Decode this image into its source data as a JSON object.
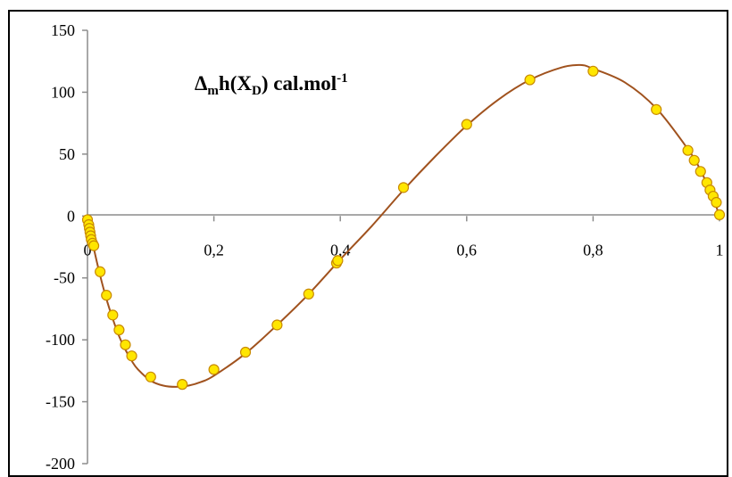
{
  "chart_data": {
    "type": "scatter",
    "title": {
      "delta": "Δ",
      "sub_m": "m",
      "h": "h(X",
      "sub_d": "D",
      "rest": ") cal.mol",
      "sup": "-1"
    },
    "xlim": [
      0,
      1
    ],
    "ylim": [
      -200,
      150
    ],
    "x_ticks": [
      "0",
      "0,2",
      "0,4",
      "0,6",
      "0,8",
      "1"
    ],
    "y_ticks": [
      "150",
      "100",
      "50",
      "0",
      "-50",
      "-100",
      "-150",
      "-200"
    ],
    "grid": false,
    "points_color": "#ffe600",
    "points_edge": "#c98a00",
    "fit_color": "#a0521e",
    "series": [
      {
        "values": [
          [
            0.0,
            -3
          ],
          [
            0.002,
            -7
          ],
          [
            0.003,
            -10
          ],
          [
            0.004,
            -13
          ],
          [
            0.005,
            -16
          ],
          [
            0.006,
            -19
          ],
          [
            0.008,
            -22
          ],
          [
            0.01,
            -24
          ],
          [
            0.02,
            -45
          ],
          [
            0.03,
            -64
          ],
          [
            0.04,
            -80
          ],
          [
            0.05,
            -92
          ],
          [
            0.06,
            -104
          ],
          [
            0.07,
            -113
          ],
          [
            0.1,
            -130
          ],
          [
            0.15,
            -136
          ],
          [
            0.2,
            -124
          ],
          [
            0.25,
            -110
          ],
          [
            0.3,
            -88
          ],
          [
            0.35,
            -63
          ],
          [
            0.394,
            -38
          ],
          [
            0.396,
            -36
          ],
          [
            0.5,
            23
          ],
          [
            0.6,
            74
          ],
          [
            0.7,
            110
          ],
          [
            0.8,
            117
          ],
          [
            0.9,
            86
          ],
          [
            0.95,
            53
          ],
          [
            0.96,
            45
          ],
          [
            0.97,
            36
          ],
          [
            0.98,
            27
          ],
          [
            0.985,
            21
          ],
          [
            0.99,
            16
          ],
          [
            0.995,
            11
          ],
          [
            1.0,
            1
          ]
        ]
      }
    ],
    "fit_curve": [
      [
        0.0,
        0
      ],
      [
        0.01,
        -26
      ],
      [
        0.02,
        -48
      ],
      [
        0.03,
        -67
      ],
      [
        0.04,
        -83
      ],
      [
        0.05,
        -97
      ],
      [
        0.06,
        -108
      ],
      [
        0.07,
        -117
      ],
      [
        0.08,
        -124
      ],
      [
        0.1,
        -133
      ],
      [
        0.12,
        -137
      ],
      [
        0.14,
        -138
      ],
      [
        0.16,
        -137
      ],
      [
        0.18,
        -134
      ],
      [
        0.2,
        -129
      ],
      [
        0.25,
        -111
      ],
      [
        0.3,
        -88
      ],
      [
        0.35,
        -63
      ],
      [
        0.4,
        -35
      ],
      [
        0.45,
        -8
      ],
      [
        0.5,
        21
      ],
      [
        0.55,
        48
      ],
      [
        0.6,
        73
      ],
      [
        0.65,
        94
      ],
      [
        0.7,
        110
      ],
      [
        0.75,
        120
      ],
      [
        0.78,
        122
      ],
      [
        0.8,
        119
      ],
      [
        0.85,
        108
      ],
      [
        0.9,
        87
      ],
      [
        0.95,
        54
      ],
      [
        0.97,
        37
      ],
      [
        0.99,
        14
      ],
      [
        1.0,
        0
      ]
    ]
  }
}
